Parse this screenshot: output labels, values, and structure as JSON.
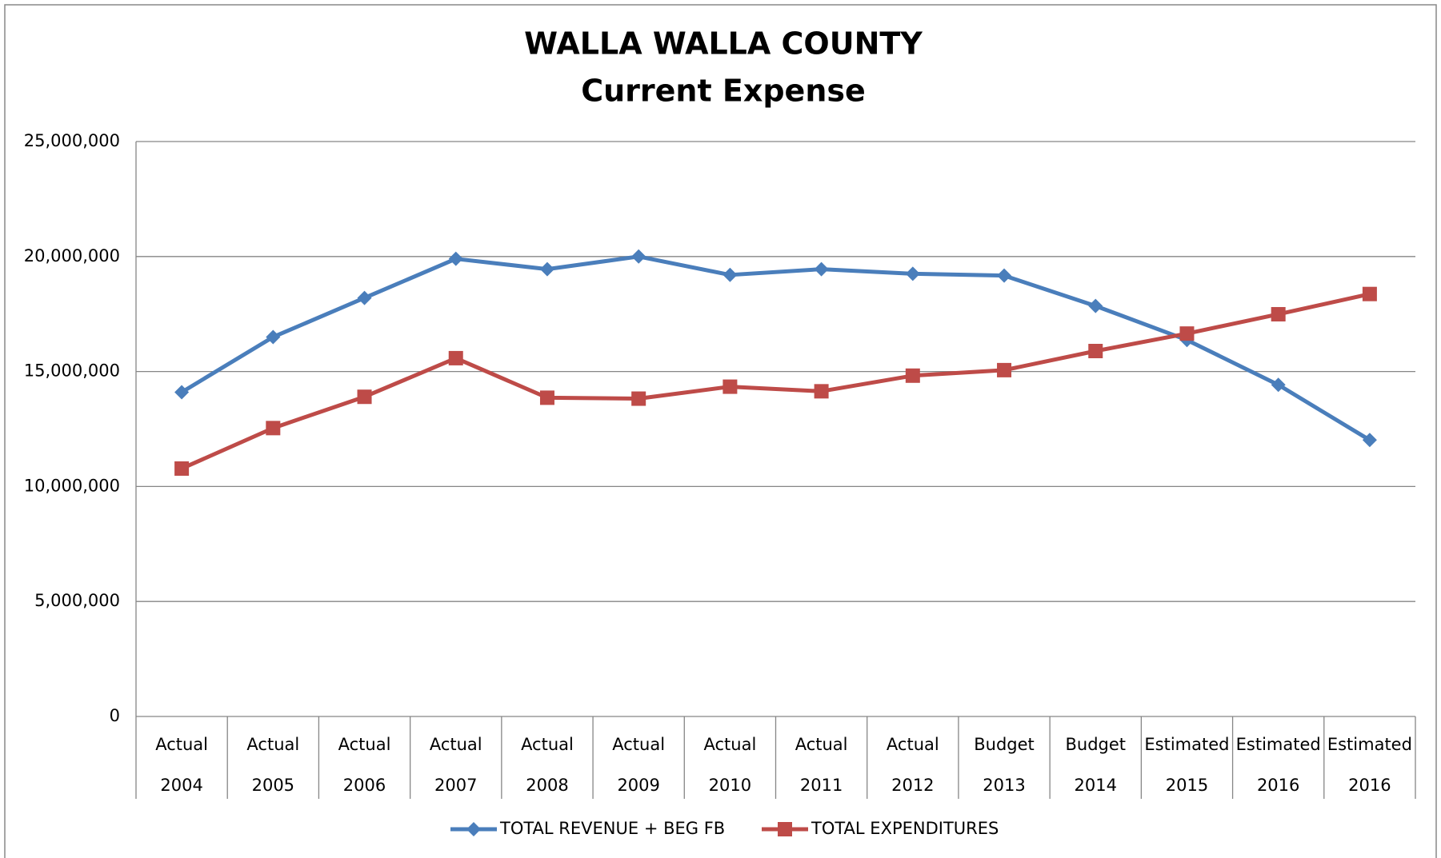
{
  "chart_data": {
    "type": "line",
    "title": [
      "WALLA WALLA COUNTY",
      "Current Expense"
    ],
    "categories": [
      [
        "Actual",
        "2004"
      ],
      [
        "Actual",
        "2005"
      ],
      [
        "Actual",
        "2006"
      ],
      [
        "Actual",
        "2007"
      ],
      [
        "Actual",
        "2008"
      ],
      [
        "Actual",
        "2009"
      ],
      [
        "Actual",
        "2010"
      ],
      [
        "Actual",
        "2011"
      ],
      [
        "Actual",
        "2012"
      ],
      [
        "Budget",
        "2013"
      ],
      [
        "Budget",
        "2014"
      ],
      [
        "Estimated",
        "2015"
      ],
      [
        "Estimated",
        "2016"
      ],
      [
        "Estimated",
        "2016"
      ]
    ],
    "series": [
      {
        "name": "TOTAL REVENUE + BEG FB",
        "color": "#4a7ebb",
        "marker": "diamond",
        "values": [
          14100000,
          16500000,
          18200000,
          19900000,
          19450000,
          20000000,
          19200000,
          19450000,
          19250000,
          19170000,
          17850000,
          16370000,
          14420000,
          12020000
        ]
      },
      {
        "name": "TOTAL EXPENDITURES",
        "color": "#be4b48",
        "marker": "square",
        "values": [
          10780000,
          12540000,
          13900000,
          15580000,
          13860000,
          13820000,
          14340000,
          14140000,
          14820000,
          15060000,
          15890000,
          16650000,
          17490000,
          18370000
        ]
      }
    ],
    "ylim": [
      0,
      25000000
    ],
    "yticks": [
      0,
      {
        "value": 5000000,
        "label": "5,000,000"
      },
      {
        "value": 10000000,
        "label": "10,000,000"
      },
      {
        "value": 15000000,
        "label": "15,000,000"
      },
      {
        "value": 20000000,
        "label": "20,000,000"
      },
      {
        "value": 25000000,
        "label": "25,000,000"
      }
    ],
    "grid": true,
    "legend": "bottom"
  }
}
